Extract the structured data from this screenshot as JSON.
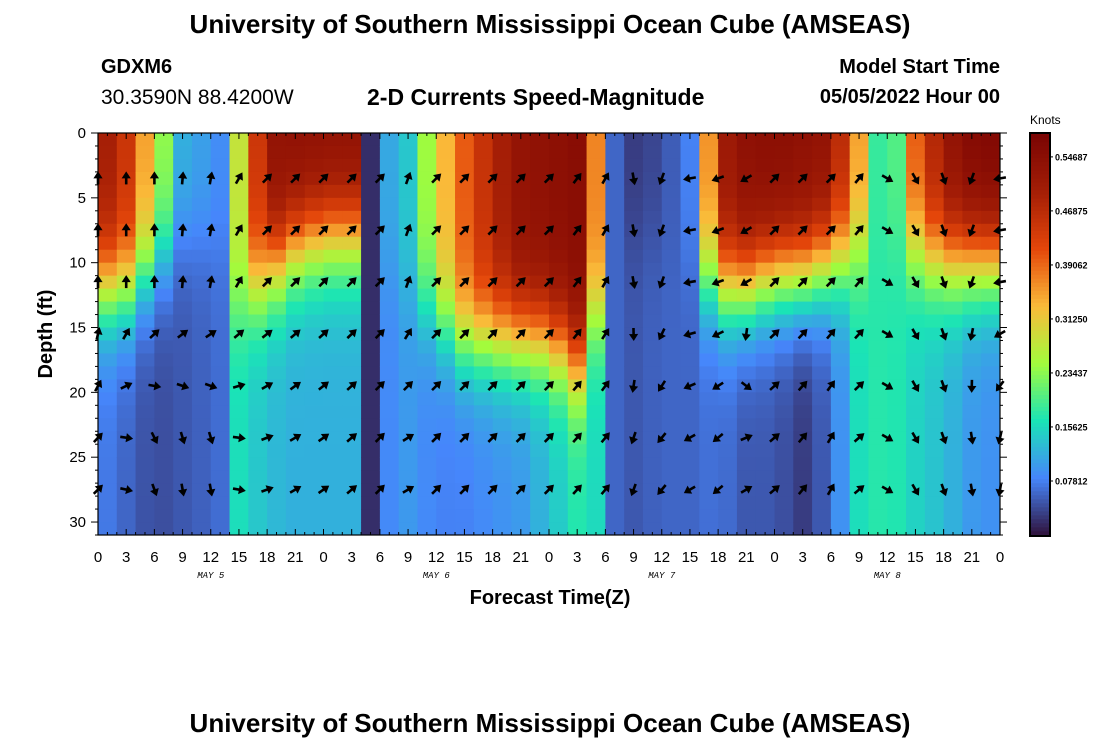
{
  "header": {
    "title": "University of Southern Mississippi Ocean Cube (AMSEAS)",
    "station_name": "GDXM6",
    "station_coords": "30.3590N  88.4200W",
    "chart_title": "2-D Currents Speed-Magnitude",
    "model_start_label": "Model Start Time",
    "model_start_value": "05/05/2022 Hour 00"
  },
  "footer": {
    "title": "University of Southern Mississippi Ocean Cube (AMSEAS)"
  },
  "colors": {
    "palette": [
      "#30123b",
      "#4686fb",
      "#1ae4b6",
      "#a2fc3c",
      "#faba39",
      "#e4460a",
      "#a41e06",
      "#7a0403"
    ]
  },
  "chart_data": {
    "type": "heatmap",
    "title": "2-D Currents Speed-Magnitude",
    "xlabel": "Forecast Time(Z)",
    "ylabel": "Depth (ft)",
    "x_tick_labels": [
      "0",
      "3",
      "6",
      "9",
      "12",
      "15",
      "18",
      "21",
      "0",
      "3",
      "6",
      "9",
      "12",
      "15",
      "18",
      "21",
      "0",
      "3",
      "6",
      "9",
      "12",
      "15",
      "18",
      "21",
      "0",
      "3",
      "6",
      "9",
      "12",
      "15",
      "18",
      "21",
      "0"
    ],
    "date_labels": [
      {
        "label": "MAY 5",
        "hour": 12
      },
      {
        "label": "MAY 6",
        "hour": 36
      },
      {
        "label": "MAY 7",
        "hour": 60
      },
      {
        "label": "MAY 8",
        "hour": 84
      }
    ],
    "xlim_hours": [
      0,
      96
    ],
    "y_ticks": [
      0,
      5,
      10,
      15,
      20,
      25,
      30
    ],
    "ylim_ft": [
      0,
      31
    ],
    "colorbar": {
      "unit": "Knots",
      "range": [
        0,
        0.58
      ],
      "tick_values": [
        0.0781,
        0.1563,
        0.2344,
        0.3125,
        0.3906,
        0.4688,
        0.5469
      ],
      "tick_labels": [
        "0.07812",
        "0.15625",
        "0.23437",
        "0.31250",
        "0.39062",
        "0.46875",
        "0.54687"
      ]
    },
    "vector_depths_ft": [
      3.5,
      7.5,
      11.5,
      15.5,
      19.5,
      23.5,
      27.5
    ],
    "vector_hours": [
      0,
      3,
      6,
      9,
      12,
      15,
      18,
      21,
      24,
      27,
      30,
      33,
      36,
      39,
      42,
      45,
      48,
      51,
      54,
      57,
      60,
      63,
      66,
      69,
      72,
      75,
      78,
      81,
      84,
      87,
      90,
      93,
      96
    ],
    "speed_model": {
      "hours": [
        0,
        3,
        6,
        9,
        12,
        14,
        15,
        18,
        21,
        24,
        27,
        28,
        29,
        30,
        33,
        36,
        39,
        42,
        45,
        48,
        51,
        54,
        55,
        56,
        57,
        60,
        63,
        66,
        69,
        72,
        75,
        78,
        81,
        84,
        87,
        90,
        93,
        96
      ],
      "surface_kn": [
        0.52,
        0.45,
        0.3,
        0.12,
        0.1,
        0.08,
        0.28,
        0.53,
        0.54,
        0.54,
        0.54,
        0.4,
        0.02,
        0.1,
        0.14,
        0.3,
        0.4,
        0.48,
        0.53,
        0.54,
        0.55,
        0.28,
        0.06,
        0.04,
        0.03,
        0.04,
        0.08,
        0.5,
        0.54,
        0.55,
        0.54,
        0.53,
        0.35,
        0.1,
        0.4,
        0.52,
        0.56,
        0.57
      ],
      "bottom_kn": [
        0.08,
        0.06,
        0.04,
        0.05,
        0.06,
        0.07,
        0.16,
        0.13,
        0.12,
        0.12,
        0.12,
        0.08,
        0.02,
        0.08,
        0.1,
        0.08,
        0.08,
        0.09,
        0.1,
        0.13,
        0.17,
        0.15,
        0.06,
        0.04,
        0.05,
        0.06,
        0.06,
        0.07,
        0.05,
        0.05,
        0.03,
        0.06,
        0.16,
        0.18,
        0.15,
        0.13,
        0.1,
        0.09
      ],
      "decay_depth_ft": [
        12,
        12,
        10,
        8,
        8,
        9,
        13,
        11,
        9,
        8,
        8,
        6,
        8,
        10,
        12,
        14,
        16,
        16,
        16,
        16,
        18,
        12,
        8,
        8,
        8,
        8,
        10,
        12,
        12,
        11,
        11,
        10,
        9,
        9,
        9,
        10,
        10,
        10
      ]
    },
    "direction_model": {
      "hours": [
        0,
        6,
        9,
        12,
        15,
        18,
        21,
        30,
        33,
        36,
        48,
        54,
        57,
        60,
        63,
        66,
        69,
        72,
        78,
        81,
        84,
        87,
        90,
        93,
        96
      ],
      "upper_deg": [
        0,
        0,
        5,
        10,
        30,
        45,
        45,
        45,
        20,
        45,
        45,
        30,
        170,
        200,
        260,
        250,
        240,
        45,
        45,
        40,
        120,
        150,
        160,
        200,
        260
      ],
      "lower_deg": [
        45,
        160,
        170,
        170,
        100,
        70,
        60,
        45,
        60,
        45,
        45,
        40,
        200,
        220,
        240,
        230,
        60,
        50,
        30,
        50,
        120,
        150,
        160,
        170,
        190
      ]
    }
  }
}
